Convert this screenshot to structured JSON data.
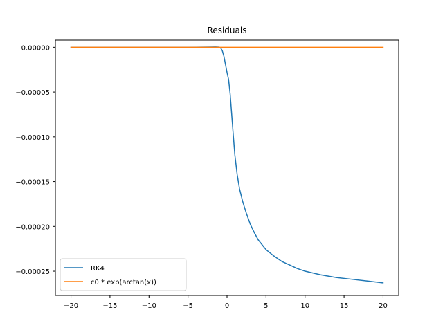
{
  "chart_data": {
    "type": "line",
    "title": "Residuals",
    "xlabel": "",
    "ylabel": "",
    "xlim": [
      -22,
      22
    ],
    "ylim": [
      -0.000277,
      8e-06
    ],
    "x_ticks": [
      -20,
      -15,
      -10,
      -5,
      0,
      5,
      10,
      15,
      20
    ],
    "x_tick_labels": [
      "−20",
      "−15",
      "−10",
      "−5",
      "0",
      "5",
      "10",
      "15",
      "20"
    ],
    "y_ticks": [
      0,
      -5e-05,
      -0.0001,
      -0.00015,
      -0.0002,
      -0.00025
    ],
    "y_tick_labels": [
      "0.00000",
      "−0.00005",
      "−0.00010",
      "−0.00015",
      "−0.00020",
      "−0.00025"
    ],
    "grid": false,
    "legend_position": "lower-left",
    "series": [
      {
        "name": "RK4",
        "color": "#1f77b4",
        "points": [
          [
            -20,
            0
          ],
          [
            -10,
            0
          ],
          [
            -5,
            0
          ],
          [
            -2,
            3e-07
          ],
          [
            -1.5,
            4e-07
          ],
          [
            -1.0,
            2e-07
          ],
          [
            -0.8,
            -1e-06
          ],
          [
            -0.6,
            -4e-06
          ],
          [
            -0.4,
            -1e-05
          ],
          [
            -0.2,
            -1.9e-05
          ],
          [
            0,
            -2.8e-05
          ],
          [
            0.2,
            -3.6e-05
          ],
          [
            0.4,
            -5.2e-05
          ],
          [
            0.6,
            -7.5e-05
          ],
          [
            0.8,
            -9.8e-05
          ],
          [
            1.0,
            -0.00012
          ],
          [
            1.3,
            -0.000142
          ],
          [
            1.6,
            -0.000158
          ],
          [
            2.0,
            -0.000172
          ],
          [
            2.5,
            -0.000186
          ],
          [
            3.0,
            -0.000198
          ],
          [
            3.5,
            -0.000207
          ],
          [
            4.0,
            -0.000215
          ],
          [
            5.0,
            -0.000226
          ],
          [
            6.0,
            -0.000233
          ],
          [
            7.0,
            -0.000239
          ],
          [
            8.0,
            -0.000243
          ],
          [
            9.0,
            -0.000247
          ],
          [
            10.0,
            -0.00025
          ],
          [
            12.0,
            -0.000254
          ],
          [
            14.0,
            -0.000257
          ],
          [
            16.0,
            -0.000259
          ],
          [
            18.0,
            -0.000261
          ],
          [
            20.0,
            -0.000263
          ]
        ]
      },
      {
        "name": "c0 * exp(arctan(x))",
        "color": "#ff7f0e",
        "points": [
          [
            -20,
            0
          ],
          [
            20,
            0
          ]
        ]
      }
    ]
  }
}
